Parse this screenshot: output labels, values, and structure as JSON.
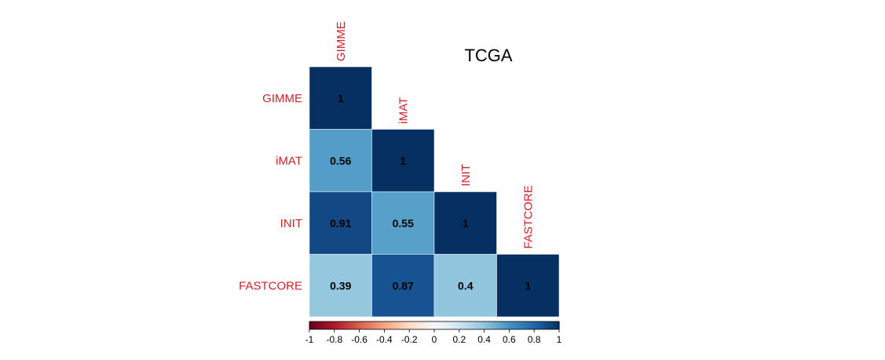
{
  "chart_data": {
    "type": "heatmap",
    "title": "TCGA",
    "variables": [
      "GIMME",
      "iMAT",
      "INIT",
      "FASTCORE"
    ],
    "matrix": [
      [
        1,
        null,
        null,
        null
      ],
      [
        0.56,
        1,
        null,
        null
      ],
      [
        0.91,
        0.55,
        1,
        null
      ],
      [
        0.39,
        0.87,
        0.4,
        1
      ]
    ],
    "layout": "lower-triangle",
    "colorbar": {
      "range": [
        -1,
        1
      ],
      "ticks": [
        -1,
        -0.8,
        -0.6,
        -0.4,
        -0.2,
        0,
        0.2,
        0.4,
        0.6,
        0.8,
        1
      ],
      "tick_labels": [
        "-1",
        "-0.8",
        "-0.6",
        "-0.4",
        "-0.2",
        "0",
        "0.2",
        "0.4",
        "0.6",
        "0.8",
        "1"
      ],
      "placement": "bottom",
      "colors": [
        "#67001f",
        "#b2182b",
        "#d6604d",
        "#f4a582",
        "#fddbc7",
        "#f7f7f7",
        "#d1e5f0",
        "#92c5de",
        "#4393c3",
        "#2166ac",
        "#053061"
      ]
    },
    "label_color": "#d1202a"
  }
}
